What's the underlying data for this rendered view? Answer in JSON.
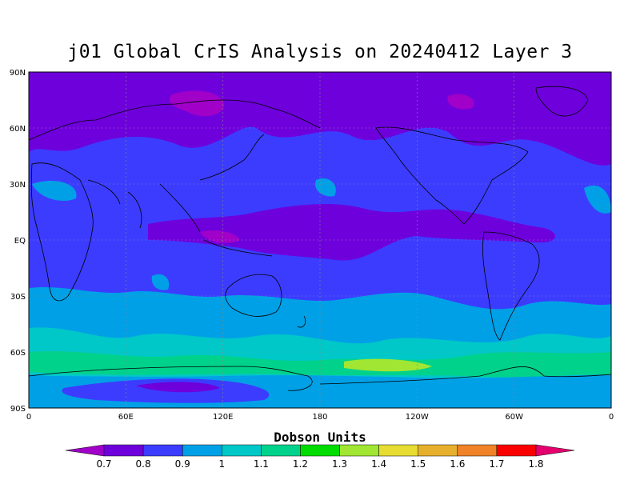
{
  "title": "j01 Global CrIS Analysis on 20240412 Layer 3",
  "colorbar": {
    "units_label": "Dobson Units",
    "labels": [
      "0.7",
      "0.8",
      "0.9",
      "1",
      "1.1",
      "1.2",
      "1.3",
      "1.4",
      "1.5",
      "1.6",
      "1.7",
      "1.8"
    ],
    "colors": [
      "#a000c8",
      "#6e00dc",
      "#3c3cff",
      "#00a0e6",
      "#00c8c8",
      "#00d28c",
      "#00dc00",
      "#a0e632",
      "#e6dc32",
      "#e6af2d",
      "#f08228",
      "#fa0000",
      "#e6006e"
    ]
  },
  "map": {
    "lat_ticks": [
      "90N",
      "60N",
      "30N",
      "EQ",
      "30S",
      "60S",
      "90S"
    ],
    "lon_ticks": [
      "0",
      "60E",
      "120E",
      "180",
      "120W",
      "60W",
      "0"
    ],
    "background_color": "#3c3cff"
  }
}
